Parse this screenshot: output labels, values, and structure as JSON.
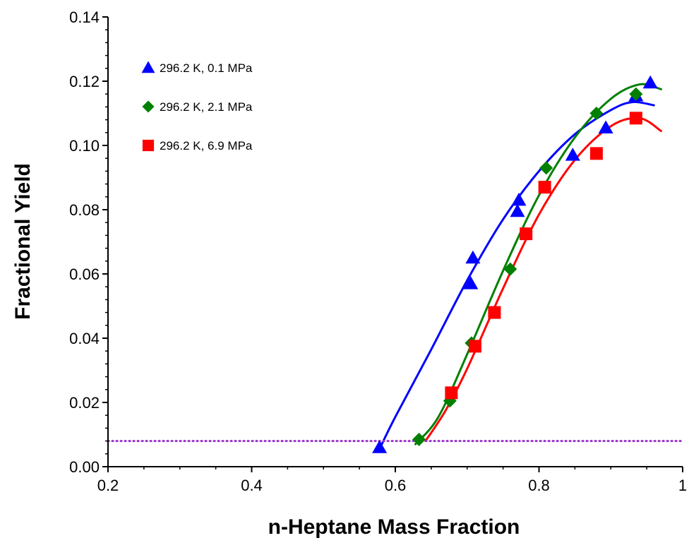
{
  "chart_data": {
    "type": "scatter",
    "title": "",
    "xlabel": "n-Heptane Mass Fraction",
    "ylabel": "Fractional Yield",
    "xlim": [
      0.2,
      1.0
    ],
    "ylim": [
      0.0,
      0.14
    ],
    "x_ticks": [
      0.2,
      0.4,
      0.6,
      0.8,
      1.0
    ],
    "x_tick_labels": [
      "0.2",
      "0.4",
      "0.6",
      "0.8",
      "1"
    ],
    "y_ticks": [
      0.0,
      0.02,
      0.04,
      0.06,
      0.08,
      0.1,
      0.12,
      0.14
    ],
    "y_tick_labels": [
      "0.00",
      "0.02",
      "0.04",
      "0.06",
      "0.08",
      "0.10",
      "0.12",
      "0.14"
    ],
    "grid": false,
    "legend_position": "top-left",
    "reference_line": {
      "y": 0.008,
      "color": "#9933cc",
      "style": "dotted"
    },
    "series": [
      {
        "name": "296.2 K, 0.1 MPa",
        "marker": "triangle",
        "color": "#0000ff",
        "points": [
          [
            0.578,
            0.006
          ],
          [
            0.705,
            0.057
          ],
          [
            0.708,
            0.065
          ],
          [
            0.77,
            0.0795
          ],
          [
            0.772,
            0.083
          ],
          [
            0.847,
            0.097
          ],
          [
            0.893,
            0.1055
          ],
          [
            0.935,
            0.1155
          ],
          [
            0.955,
            0.1195
          ]
        ],
        "fit": [
          [
            0.578,
            0.0055
          ],
          [
            0.6,
            0.0155
          ],
          [
            0.65,
            0.0365
          ],
          [
            0.7,
            0.058
          ],
          [
            0.75,
            0.077
          ],
          [
            0.8,
            0.092
          ],
          [
            0.85,
            0.1035
          ],
          [
            0.9,
            0.111
          ],
          [
            0.93,
            0.1135
          ],
          [
            0.96,
            0.1125
          ]
        ]
      },
      {
        "name": "296.2 K, 2.1 MPa",
        "marker": "diamond",
        "color": "#008000",
        "points": [
          [
            0.633,
            0.0085
          ],
          [
            0.676,
            0.0205
          ],
          [
            0.706,
            0.0385
          ],
          [
            0.76,
            0.0615
          ],
          [
            0.81,
            0.093
          ],
          [
            0.88,
            0.11
          ],
          [
            0.935,
            0.116
          ]
        ],
        "fit": [
          [
            0.628,
            0.007
          ],
          [
            0.66,
            0.0155
          ],
          [
            0.7,
            0.035
          ],
          [
            0.75,
            0.061
          ],
          [
            0.8,
            0.0845
          ],
          [
            0.85,
            0.1025
          ],
          [
            0.9,
            0.1145
          ],
          [
            0.94,
            0.119
          ],
          [
            0.97,
            0.1175
          ]
        ]
      },
      {
        "name": "296.2 K, 6.9 MPa",
        "marker": "square",
        "color": "#ff0000",
        "points": [
          [
            0.678,
            0.023
          ],
          [
            0.711,
            0.0375
          ],
          [
            0.738,
            0.048
          ],
          [
            0.782,
            0.0725
          ],
          [
            0.808,
            0.087
          ],
          [
            0.88,
            0.0975
          ],
          [
            0.935,
            0.1085
          ]
        ],
        "fit": [
          [
            0.642,
            0.008
          ],
          [
            0.67,
            0.0175
          ],
          [
            0.7,
            0.0305
          ],
          [
            0.75,
            0.0555
          ],
          [
            0.8,
            0.0785
          ],
          [
            0.85,
            0.0955
          ],
          [
            0.9,
            0.106
          ],
          [
            0.94,
            0.1085
          ],
          [
            0.97,
            0.1045
          ]
        ]
      }
    ]
  }
}
